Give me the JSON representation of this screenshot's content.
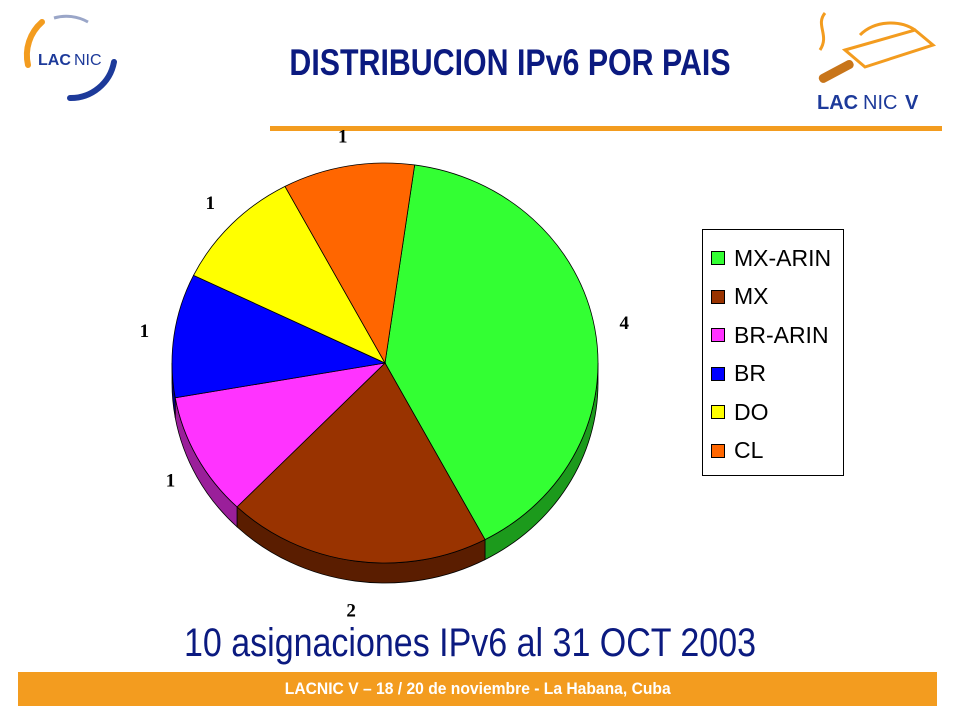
{
  "header": {
    "title": "DISTRIBUCION IPv6 POR PAIS",
    "logo_left_text": "LACNIC",
    "logo_right_text": "LACNICV"
  },
  "colors": {
    "accent_orange": "#f39c1f",
    "title_blue": "#0b1a80"
  },
  "chart_data": {
    "type": "pie",
    "categories": [
      "MX-ARIN",
      "MX",
      "BR-ARIN",
      "BR",
      "DO",
      "CL"
    ],
    "values": [
      4,
      2,
      1,
      1,
      1,
      1
    ],
    "colors": [
      "#33ff33",
      "#993300",
      "#ff33ff",
      "#0000ff",
      "#ffff00",
      "#ff6600"
    ],
    "side_colors": [
      "#1c9a1c",
      "#5a1d00",
      "#9a1f9a",
      "#00008a",
      "#9a9a00",
      "#9a3d00"
    ],
    "data_labels": [
      "4",
      "2",
      "1",
      "1",
      "1",
      "1"
    ],
    "legend_position": "right",
    "style": "3d-pie"
  },
  "subtitle": "10 asignaciones IPv6 al 31 OCT 2003",
  "footer": {
    "text": "LACNIC V – 18 / 20 de noviembre - La Habana, Cuba"
  }
}
